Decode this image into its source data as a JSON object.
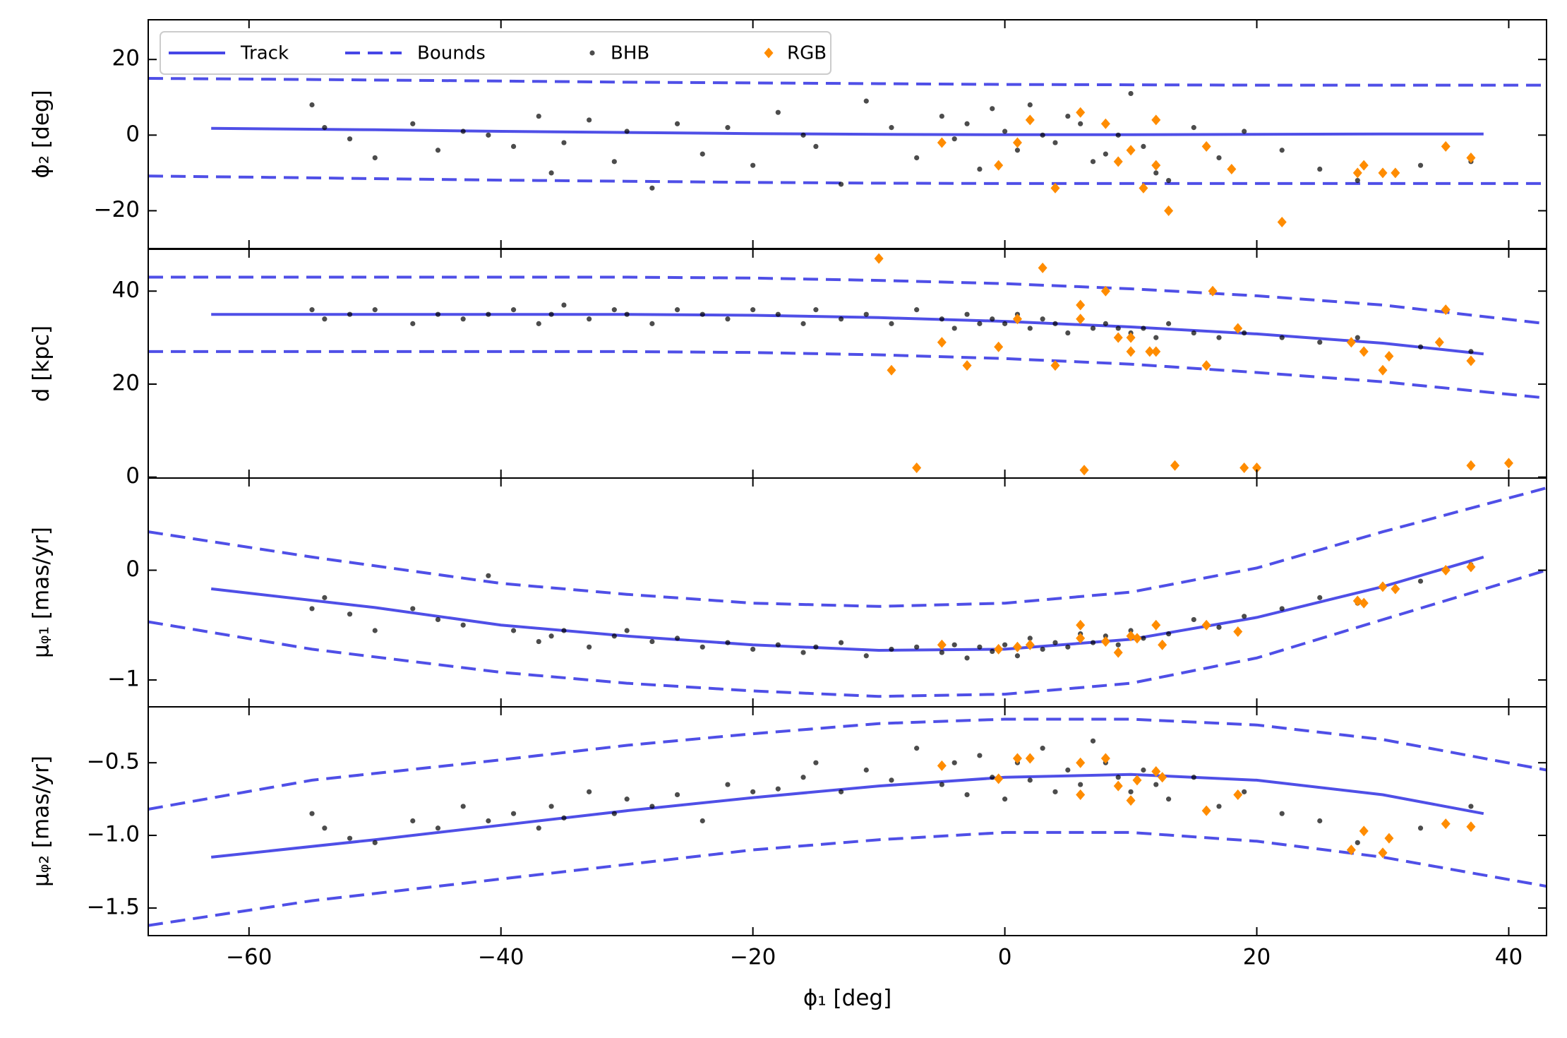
{
  "chart_data": [
    {
      "type": "scatter",
      "ylabel": "ϕ₂ [deg]",
      "xlim": [
        -68,
        43
      ],
      "ylim": [
        -30,
        30.5
      ],
      "xticks": [
        -60,
        -40,
        -20,
        0,
        20,
        40
      ],
      "yticks": [
        {
          "value": -20,
          "label": "−20"
        },
        0,
        20
      ],
      "legend": "upper left",
      "series": [
        {
          "name": "Track",
          "color": "#4646e6",
          "linestyle": "solid",
          "x": [
            -63,
            -50,
            -40,
            -30,
            -20,
            -10,
            0,
            10,
            20,
            30,
            38
          ],
          "values": [
            1.8,
            1.4,
            1,
            0.7,
            0.4,
            0.2,
            0.1,
            0.1,
            0.2,
            0.3,
            0.3
          ]
        },
        {
          "name": "Bounds",
          "color": "#4646e6",
          "linestyle": "dashed",
          "x": [
            -68,
            -55,
            -40,
            -30,
            -20,
            -10,
            0,
            10,
            20,
            30,
            43
          ],
          "values": [
            15,
            14.7,
            14.3,
            14,
            13.8,
            13.6,
            13.4,
            13.3,
            13.2,
            13.2,
            13.2
          ],
          "lower": [
            -10.8,
            -11.3,
            -11.9,
            -12.2,
            -12.5,
            -12.7,
            -12.8,
            -12.8,
            -12.8,
            -12.8,
            -12.8
          ]
        },
        {
          "name": "BHB",
          "color": "#000000",
          "marker": "dot",
          "x": [
            -55,
            -54,
            -52,
            -50,
            -47,
            -45,
            -43,
            -41,
            -39,
            -37,
            -36,
            -35,
            -33,
            -31,
            -30,
            -28,
            -26,
            -24,
            -22,
            -20,
            -18,
            -16,
            -15,
            -13,
            -11,
            -9,
            -7,
            -5,
            -4,
            -3,
            -2,
            -1,
            0,
            1,
            2,
            3,
            4,
            5,
            6,
            7,
            8,
            9,
            10,
            11,
            12,
            13,
            15,
            17,
            19,
            22,
            25,
            28,
            33,
            37
          ],
          "values": [
            8,
            2,
            -1,
            -6,
            3,
            -4,
            1,
            0,
            -3,
            5,
            -10,
            -2,
            4,
            -7,
            1,
            -14,
            3,
            -5,
            2,
            -8,
            6,
            0,
            -3,
            -13,
            9,
            2,
            -6,
            5,
            -1,
            3,
            -9,
            7,
            1,
            -4,
            8,
            0,
            -2,
            5,
            3,
            -7,
            -5,
            0,
            11,
            -3,
            -10,
            -12,
            2,
            -6,
            1,
            -4,
            -9,
            -12,
            -8,
            -7
          ]
        },
        {
          "name": "RGB",
          "color": "#ff8c00",
          "marker": "diamond",
          "x": [
            -5,
            -0.5,
            1,
            2,
            4,
            6,
            8,
            9,
            10,
            11,
            12,
            12,
            13,
            16,
            18,
            22,
            28,
            28.5,
            30,
            31,
            35,
            37
          ],
          "values": [
            -2,
            -8,
            -2,
            4,
            -14,
            6,
            3,
            -7,
            -4,
            -14,
            4,
            -8,
            -20,
            -3,
            -9,
            -23,
            -10,
            -8,
            -10,
            -10,
            -3,
            -6
          ]
        }
      ]
    },
    {
      "type": "scatter",
      "ylabel": "d [kpc]",
      "xlim": [
        -68,
        43
      ],
      "ylim": [
        -0.2,
        49
      ],
      "xticks": [
        -60,
        -40,
        -20,
        0,
        20,
        40
      ],
      "yticks": [
        0,
        20,
        40
      ],
      "series": [
        {
          "name": "Track",
          "color": "#4646e6",
          "linestyle": "solid",
          "x": [
            -63,
            -50,
            -40,
            -30,
            -20,
            -10,
            0,
            10,
            20,
            30,
            38
          ],
          "values": [
            35,
            35,
            35,
            35,
            34.8,
            34.3,
            33.5,
            32.3,
            30.8,
            28.8,
            26.5
          ]
        },
        {
          "name": "Bounds",
          "color": "#4646e6",
          "linestyle": "dashed",
          "x": [
            -68,
            -55,
            -40,
            -30,
            -20,
            -10,
            0,
            10,
            20,
            30,
            43
          ],
          "values": [
            43,
            43,
            43,
            43,
            42.8,
            42.3,
            41.6,
            40.5,
            39,
            37,
            33
          ],
          "lower": [
            27,
            27,
            27,
            27,
            26.8,
            26.3,
            25.5,
            24.3,
            22.5,
            20.5,
            17
          ]
        },
        {
          "name": "BHB",
          "color": "#000000",
          "marker": "dot",
          "x": [
            -55,
            -54,
            -52,
            -50,
            -47,
            -45,
            -43,
            -41,
            -39,
            -37,
            -36,
            -35,
            -33,
            -31,
            -30,
            -28,
            -26,
            -24,
            -22,
            -20,
            -18,
            -16,
            -15,
            -13,
            -11,
            -9,
            -7,
            -5,
            -4,
            -3,
            -2,
            -1,
            0,
            1,
            2,
            3,
            4,
            5,
            6,
            7,
            8,
            9,
            10,
            11,
            12,
            13,
            15,
            17,
            19,
            22,
            25,
            28,
            33,
            37
          ],
          "values": [
            36,
            34,
            35,
            36,
            33,
            35,
            34,
            35,
            36,
            33,
            35,
            37,
            34,
            36,
            35,
            33,
            36,
            35,
            34,
            36,
            35,
            33,
            36,
            34,
            35,
            33,
            36,
            34,
            32,
            35,
            33,
            34,
            33,
            35,
            32,
            34,
            33,
            31,
            34,
            32,
            33,
            32,
            31,
            32,
            30,
            33,
            31,
            30,
            31,
            30,
            29,
            30,
            28,
            27
          ]
        },
        {
          "name": "RGB",
          "color": "#ff8c00",
          "marker": "diamond",
          "x": [
            -10,
            -9,
            -7,
            -5,
            -3,
            -0.5,
            1,
            3,
            4,
            6,
            6,
            6.3,
            8,
            9,
            10,
            10,
            11.5,
            12,
            13.5,
            16,
            16.5,
            18.5,
            19,
            20,
            27.5,
            28.5,
            30,
            30.5,
            34.5,
            35,
            37,
            37,
            40
          ],
          "values": [
            47,
            23,
            2,
            29,
            24,
            28,
            34,
            45,
            24,
            34,
            37,
            1.5,
            40,
            30,
            27,
            30,
            27,
            27,
            2.5,
            24,
            40,
            32,
            2,
            2,
            29,
            27,
            23,
            26,
            29,
            36,
            25,
            2.5,
            3
          ]
        }
      ]
    },
    {
      "type": "scatter",
      "ylabel": "μᵩ₁ [mas/yr]",
      "xlim": [
        -68,
        43
      ],
      "ylim": [
        -1.245,
        0.84
      ],
      "xticks": [
        -60,
        -40,
        -20,
        0,
        20,
        40
      ],
      "yticks": [
        {
          "value": -1,
          "label": "−1"
        },
        0
      ],
      "series": [
        {
          "name": "Track",
          "color": "#4646e6",
          "linestyle": "solid",
          "x": [
            -63,
            -50,
            -40,
            -30,
            -20,
            -10,
            0,
            10,
            20,
            30,
            38
          ],
          "values": [
            -0.17,
            -0.34,
            -0.5,
            -0.6,
            -0.68,
            -0.73,
            -0.72,
            -0.63,
            -0.43,
            -0.15,
            0.12
          ]
        },
        {
          "name": "Bounds",
          "color": "#4646e6",
          "linestyle": "dashed",
          "x": [
            -68,
            -55,
            -40,
            -30,
            -20,
            -10,
            0,
            10,
            20,
            30,
            43
          ],
          "values": [
            0.35,
            0.12,
            -0.12,
            -0.22,
            -0.3,
            -0.33,
            -0.3,
            -0.2,
            0.02,
            0.35,
            0.75
          ],
          "lower": [
            -0.47,
            -0.72,
            -0.93,
            -1.03,
            -1.1,
            -1.15,
            -1.13,
            -1.03,
            -0.8,
            -0.45,
            0.0
          ]
        },
        {
          "name": "BHB",
          "color": "#000000",
          "marker": "dot",
          "x": [
            -55,
            -54,
            -52,
            -50,
            -47,
            -45,
            -43,
            -41,
            -39,
            -37,
            -36,
            -35,
            -33,
            -31,
            -30,
            -28,
            -26,
            -24,
            -22,
            -20,
            -18,
            -16,
            -15,
            -13,
            -11,
            -9,
            -7,
            -5,
            -4,
            -3,
            -2,
            -1,
            0,
            1,
            2,
            3,
            4,
            5,
            6,
            7,
            8,
            9,
            10,
            11,
            12,
            13,
            15,
            17,
            19,
            22,
            25,
            28,
            33,
            37
          ],
          "values": [
            -0.35,
            -0.25,
            -0.4,
            -0.55,
            -0.35,
            -0.45,
            -0.5,
            -0.05,
            -0.55,
            -0.65,
            -0.6,
            -0.55,
            -0.7,
            -0.6,
            -0.55,
            -0.65,
            -0.62,
            -0.7,
            -0.66,
            -0.72,
            -0.68,
            -0.75,
            -0.7,
            -0.66,
            -0.78,
            -0.72,
            -0.7,
            -0.75,
            -0.68,
            -0.8,
            -0.7,
            -0.74,
            -0.68,
            -0.78,
            -0.62,
            -0.72,
            -0.66,
            -0.7,
            -0.58,
            -0.66,
            -0.6,
            -0.68,
            -0.55,
            -0.62,
            -0.5,
            -0.58,
            -0.45,
            -0.52,
            -0.42,
            -0.35,
            -0.25,
            -0.3,
            -0.1,
            0.05
          ]
        },
        {
          "name": "RGB",
          "color": "#ff8c00",
          "marker": "diamond",
          "x": [
            -5,
            -0.5,
            1,
            2,
            6,
            6,
            8,
            9,
            10,
            10.5,
            12,
            12.5,
            16,
            18.5,
            28,
            28.5,
            30,
            31,
            35,
            37
          ],
          "values": [
            -0.68,
            -0.72,
            -0.7,
            -0.68,
            -0.62,
            -0.5,
            -0.65,
            -0.75,
            -0.6,
            -0.62,
            -0.5,
            -0.68,
            -0.5,
            -0.56,
            -0.28,
            -0.3,
            -0.15,
            -0.17,
            0,
            0.03
          ]
        }
      ]
    },
    {
      "type": "scatter",
      "ylabel": "μᵩ₂ [mas/yr]",
      "xlabel": "ϕ₁ [deg]",
      "xlim": [
        -68,
        43
      ],
      "ylim": [
        -1.69,
        -0.115
      ],
      "xticks": [
        {
          "value": -60,
          "label": "−60"
        },
        {
          "value": -40,
          "label": "−40"
        },
        {
          "value": -20,
          "label": "−20"
        },
        0,
        20,
        40
      ],
      "xtick_labels": true,
      "yticks": [
        {
          "value": -1.5,
          "label": "−1.5"
        },
        {
          "value": -1.0,
          "label": "−1.0"
        },
        {
          "value": -0.5,
          "label": "−0.5"
        }
      ],
      "series": [
        {
          "name": "Track",
          "color": "#4646e6",
          "linestyle": "solid",
          "x": [
            -63,
            -50,
            -40,
            -30,
            -20,
            -10,
            0,
            10,
            20,
            30,
            38
          ],
          "values": [
            -1.15,
            -1.03,
            -0.93,
            -0.83,
            -0.74,
            -0.66,
            -0.6,
            -0.58,
            -0.62,
            -0.72,
            -0.85
          ]
        },
        {
          "name": "Bounds",
          "color": "#4646e6",
          "linestyle": "dashed",
          "x": [
            -68,
            -55,
            -40,
            -30,
            -20,
            -10,
            0,
            10,
            20,
            30,
            43
          ],
          "values": [
            -0.82,
            -0.62,
            -0.48,
            -0.38,
            -0.3,
            -0.23,
            -0.2,
            -0.2,
            -0.24,
            -0.34,
            -0.55
          ],
          "lower": [
            -1.62,
            -1.45,
            -1.3,
            -1.2,
            -1.1,
            -1.03,
            -0.98,
            -0.98,
            -1.04,
            -1.15,
            -1.35
          ]
        },
        {
          "name": "BHB",
          "color": "#000000",
          "marker": "dot",
          "x": [
            -55,
            -54,
            -52,
            -50,
            -47,
            -45,
            -43,
            -41,
            -39,
            -37,
            -36,
            -35,
            -33,
            -31,
            -30,
            -28,
            -26,
            -24,
            -22,
            -20,
            -18,
            -16,
            -15,
            -13,
            -11,
            -9,
            -7,
            -5,
            -4,
            -3,
            -2,
            -1,
            0,
            1,
            2,
            3,
            4,
            5,
            6,
            7,
            8,
            9,
            10,
            11,
            12,
            13,
            15,
            17,
            19,
            22,
            25,
            28,
            33,
            37
          ],
          "values": [
            -0.85,
            -0.95,
            -1.02,
            -1.05,
            -0.9,
            -0.95,
            -0.8,
            -0.9,
            -0.85,
            -0.95,
            -0.8,
            -0.88,
            -0.7,
            -0.85,
            -0.75,
            -0.8,
            -0.72,
            -0.9,
            -0.65,
            -0.7,
            -0.68,
            -0.6,
            -0.5,
            -0.7,
            -0.55,
            -0.62,
            -0.4,
            -0.65,
            -0.5,
            -0.72,
            -0.45,
            -0.6,
            -0.75,
            -0.5,
            -0.62,
            -0.4,
            -0.7,
            -0.55,
            -0.65,
            -0.35,
            -0.5,
            -0.6,
            -0.7,
            -0.55,
            -0.65,
            -0.75,
            -0.6,
            -0.8,
            -0.7,
            -0.85,
            -0.9,
            -1.05,
            -0.95,
            -0.8
          ]
        },
        {
          "name": "RGB",
          "color": "#ff8c00",
          "marker": "diamond",
          "x": [
            -5,
            -0.5,
            1,
            2,
            6,
            6,
            8,
            9,
            10,
            10.5,
            12,
            12.5,
            16,
            18.5,
            27.5,
            28.5,
            30,
            30.5,
            35,
            37
          ],
          "values": [
            -0.52,
            -0.61,
            -0.47,
            -0.47,
            -0.5,
            -0.72,
            -0.47,
            -0.66,
            -0.76,
            -0.62,
            -0.56,
            -0.6,
            -0.83,
            -0.72,
            -1.1,
            -0.97,
            -1.12,
            -1.02,
            -0.92,
            -0.94
          ]
        }
      ]
    }
  ]
}
